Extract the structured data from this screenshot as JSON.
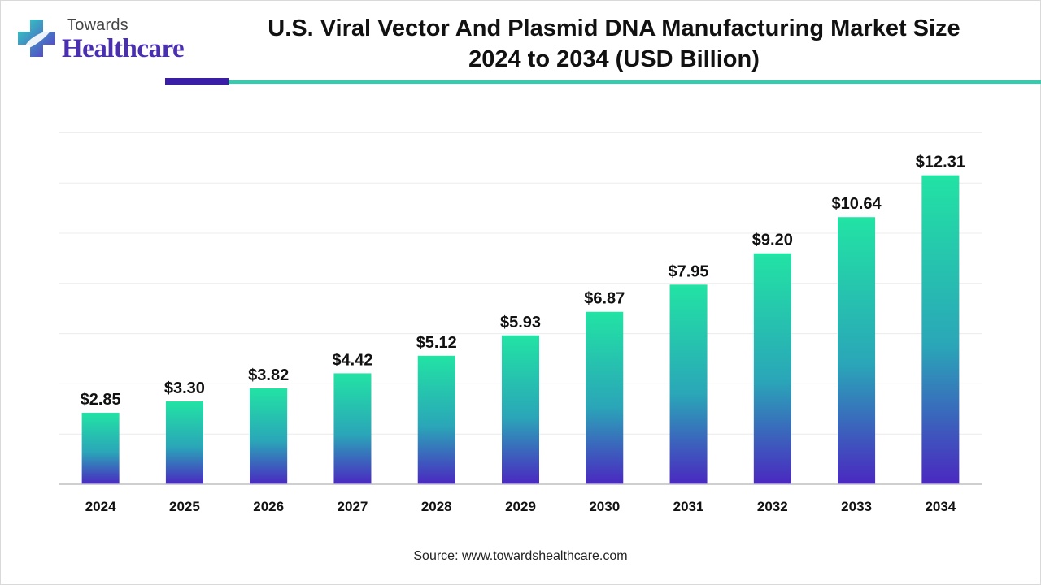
{
  "logo": {
    "top_text": "Towards",
    "main_text": "Healthcare",
    "icon": "plus-cross-leaf-icon"
  },
  "title_line1": "U.S. Viral Vector And Plasmid DNA Manufacturing Market Size",
  "title_line2": "2024 to 2034 (USD Billion)",
  "source": "Source: www.towardshealthcare.com",
  "colors": {
    "bar_top": "#22e3a4",
    "bar_bottom": "#4a28c0",
    "accent_purple": "#3a1ea8",
    "accent_teal": "#2ecfb0"
  },
  "chart_data": {
    "type": "bar",
    "categories": [
      "2024",
      "2025",
      "2026",
      "2027",
      "2028",
      "2029",
      "2030",
      "2031",
      "2032",
      "2033",
      "2034"
    ],
    "values": [
      2.85,
      3.3,
      3.82,
      4.42,
      5.12,
      5.93,
      6.87,
      7.95,
      9.2,
      10.64,
      12.31
    ],
    "value_labels": [
      "$2.85",
      "$3.30",
      "$3.82",
      "$4.42",
      "$5.12",
      "$5.93",
      "$6.87",
      "$7.95",
      "$9.20",
      "$10.64",
      "$12.31"
    ],
    "title": "U.S. Viral Vector And Plasmid DNA Manufacturing Market Size 2024 to 2034 (USD Billion)",
    "xlabel": "",
    "ylabel": "",
    "ylim": [
      0,
      14
    ],
    "grid": true,
    "legend": "none"
  }
}
